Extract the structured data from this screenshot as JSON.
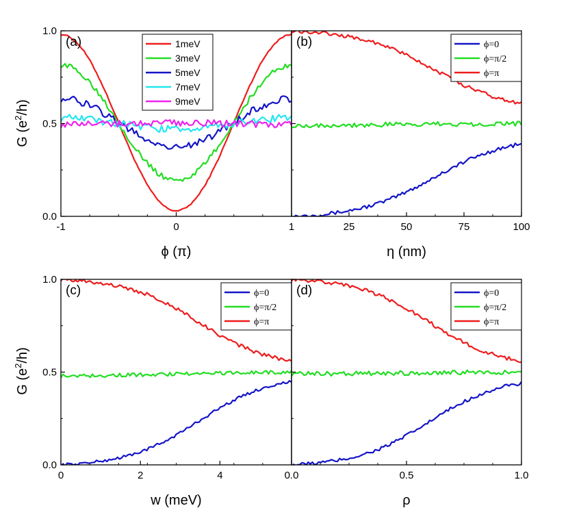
{
  "figure": {
    "ylabel_parts": [
      "G (e",
      "2",
      "/h)"
    ]
  },
  "chart_data": [
    {
      "type": "line",
      "panel": "(a)",
      "xlabel": "ϕ (π)",
      "xlim": [
        -1,
        1
      ],
      "ylim": [
        0.0,
        1.0
      ],
      "xticks": [
        -1,
        0,
        1
      ],
      "xtick_labels": [
        "-1",
        "0",
        "1"
      ],
      "yticks": [
        0.0,
        0.5,
        1.0
      ],
      "ytick_labels": [
        "0.0",
        "0.5",
        "1.0"
      ],
      "legend_position": "top-center",
      "legend_font": "sans",
      "model": "dip",
      "series": [
        {
          "name": "1meV",
          "color": "#ee1c1c",
          "noise": 0.004,
          "params": {
            "amp": 0.475,
            "base": 0.505
          }
        },
        {
          "name": "3meV",
          "color": "#22dd22",
          "noise": 0.014,
          "params": {
            "amp": 0.31,
            "base": 0.505
          }
        },
        {
          "name": "5meV",
          "color": "#1414c8",
          "noise": 0.02,
          "params": {
            "amp": 0.13,
            "base": 0.505
          }
        },
        {
          "name": "7meV",
          "color": "#22e6f0",
          "noise": 0.02,
          "params": {
            "amp": 0.03,
            "base": 0.5
          }
        },
        {
          "name": "9meV",
          "color": "#ee22ee",
          "noise": 0.018,
          "params": {
            "amp": -0.005,
            "base": 0.5
          }
        }
      ]
    },
    {
      "type": "line",
      "panel": "(b)",
      "xlabel": "η (nm)",
      "xlim": [
        0,
        100
      ],
      "ylim": [
        0.0,
        1.0
      ],
      "xticks": [
        25,
        50,
        75,
        100
      ],
      "xtick_labels": [
        "25",
        "50",
        "75",
        "100"
      ],
      "yticks": [],
      "ytick_labels": [],
      "legend_position": "top-right",
      "legend_font": "serif",
      "model": "sigmoid",
      "series": [
        {
          "name": "ϕ=0",
          "color": "#1414c8",
          "noise": 0.01,
          "params": {
            "start": 0.0,
            "end": 0.39,
            "mid": 0.62,
            "k": 1.55
          }
        },
        {
          "name": "ϕ=π/2",
          "color": "#22dd22",
          "noise": 0.013,
          "params": {
            "start": 0.49,
            "end": 0.5,
            "mid": 0.5,
            "k": 1.0
          }
        },
        {
          "name": "ϕ=π",
          "color": "#ee1c1c",
          "noise": 0.01,
          "params": {
            "start": 1.0,
            "end": 0.61,
            "mid": 0.62,
            "k": 1.55
          }
        }
      ]
    },
    {
      "type": "line",
      "panel": "(c)",
      "xlabel": "w (meV)",
      "xlim": [
        0,
        5.8
      ],
      "ylim": [
        0.0,
        1.0
      ],
      "xticks": [
        0,
        2,
        4
      ],
      "xtick_labels": [
        "0",
        "2",
        "4"
      ],
      "yticks": [
        0.0,
        0.5,
        1.0
      ],
      "ytick_labels": [
        "0.0",
        "0.5",
        "1.0"
      ],
      "legend_position": "top-right",
      "legend_font": "serif",
      "model": "sigmoid",
      "series": [
        {
          "name": "ϕ=0",
          "color": "#1414c8",
          "noise": 0.008,
          "params": {
            "start": 0.0,
            "end": 0.45,
            "mid": 0.6,
            "k": 1.6
          }
        },
        {
          "name": "ϕ=π/2",
          "color": "#22dd22",
          "noise": 0.01,
          "params": {
            "start": 0.48,
            "end": 0.5,
            "mid": 0.5,
            "k": 1.0
          }
        },
        {
          "name": "ϕ=π",
          "color": "#ee1c1c",
          "noise": 0.01,
          "params": {
            "start": 1.0,
            "end": 0.56,
            "mid": 0.6,
            "k": 1.6
          }
        }
      ]
    },
    {
      "type": "line",
      "panel": "(d)",
      "xlabel": "ρ",
      "xlim": [
        0.0,
        1.0
      ],
      "ylim": [
        0.0,
        1.0
      ],
      "xticks": [
        0.0,
        0.5,
        1.0
      ],
      "xtick_labels": [
        "0.0",
        "0.5",
        "1.0"
      ],
      "yticks": [],
      "ytick_labels": [],
      "legend_position": "top-right",
      "legend_font": "serif",
      "model": "sigmoid",
      "series": [
        {
          "name": "ϕ=0",
          "color": "#1414c8",
          "noise": 0.01,
          "params": {
            "start": 0.0,
            "end": 0.44,
            "mid": 0.6,
            "k": 1.6
          }
        },
        {
          "name": "ϕ=π/2",
          "color": "#22dd22",
          "noise": 0.012,
          "params": {
            "start": 0.49,
            "end": 0.5,
            "mid": 0.5,
            "k": 1.0
          }
        },
        {
          "name": "ϕ=π",
          "color": "#ee1c1c",
          "noise": 0.01,
          "params": {
            "start": 1.0,
            "end": 0.56,
            "mid": 0.6,
            "k": 1.6
          }
        }
      ]
    }
  ]
}
